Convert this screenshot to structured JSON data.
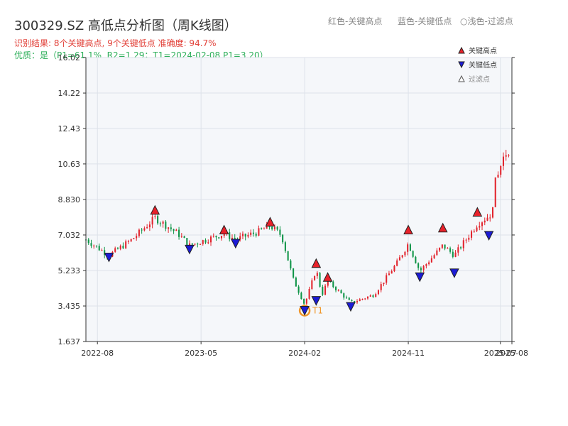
{
  "header": {
    "title": "300329.SZ 高低点分析图（周K线图）",
    "legend_red": "红色-关键高点",
    "legend_blue": "蓝色-关键低点",
    "legend_filtered": "○浅色-过滤点",
    "result_line": "识别结果: 8个关键高点, 9个关键低点   准确度: 94.7%",
    "quality_line": "优质：是（P1=61.1%, R2=1.29；T1=2024-02-08 P1=3.20）"
  },
  "colors": {
    "up": "#e2242d",
    "down": "#0f9447",
    "high_marker": "#e8212a",
    "low_marker": "#1b1bd6",
    "t1_ring": "#f0962a",
    "plot_bg": "#f5f7fa"
  },
  "chart_data": {
    "type": "candlestick",
    "title": "300329.SZ 高低点分析图（周K线图）",
    "ylim": [
      1.637,
      16.02
    ],
    "yticks": [
      "1.637",
      "3.435",
      "5.233",
      "7.032",
      "8.830",
      "10.63",
      "12.43",
      "14.22",
      "16.02"
    ],
    "xticks": [
      "2022-08",
      "2023-05",
      "2024-02",
      "2024-11",
      "2025-07",
      "2025-08"
    ],
    "x_range": [
      "2022-07",
      "2025-08"
    ],
    "legend": {
      "position": "top-right",
      "entries": [
        "关键高点",
        "关键低点",
        "过滤点"
      ]
    },
    "key_highs": [
      {
        "date": "2023-01",
        "value": 8.3
      },
      {
        "date": "2023-07",
        "value": 7.3
      },
      {
        "date": "2023-11",
        "value": 7.7
      },
      {
        "date": "2024-03",
        "value": 5.6
      },
      {
        "date": "2024-04",
        "value": 4.9
      },
      {
        "date": "2024-11",
        "value": 7.3
      },
      {
        "date": "2025-02",
        "value": 7.4
      },
      {
        "date": "2025-05",
        "value": 8.2
      }
    ],
    "key_lows": [
      {
        "date": "2022-09",
        "value": 5.9
      },
      {
        "date": "2023-04",
        "value": 6.3
      },
      {
        "date": "2023-08",
        "value": 6.6
      },
      {
        "date": "2024-02",
        "value": 3.2,
        "label": "T1"
      },
      {
        "date": "2024-03",
        "value": 3.7
      },
      {
        "date": "2024-06",
        "value": 3.4
      },
      {
        "date": "2024-12",
        "value": 4.9
      },
      {
        "date": "2025-03",
        "value": 5.1
      },
      {
        "date": "2025-06",
        "value": 7.0
      }
    ],
    "t1": {
      "date": "2024-02",
      "value": 3.2,
      "label": "T1"
    },
    "trend_points": [
      {
        "date": "2022-07",
        "value": 6.8
      },
      {
        "date": "2022-09",
        "value": 6.0
      },
      {
        "date": "2022-11",
        "value": 6.8
      },
      {
        "date": "2023-01",
        "value": 7.9
      },
      {
        "date": "2023-03",
        "value": 7.1
      },
      {
        "date": "2023-04",
        "value": 6.5
      },
      {
        "date": "2023-06",
        "value": 6.9
      },
      {
        "date": "2023-07",
        "value": 7.1
      },
      {
        "date": "2023-08",
        "value": 6.8
      },
      {
        "date": "2023-10",
        "value": 7.2
      },
      {
        "date": "2023-11",
        "value": 7.5
      },
      {
        "date": "2023-12",
        "value": 7.0
      },
      {
        "date": "2024-01",
        "value": 4.8
      },
      {
        "date": "2024-02",
        "value": 3.5
      },
      {
        "date": "2024-03",
        "value": 5.3
      },
      {
        "date": "2024-03",
        "value": 4.0
      },
      {
        "date": "2024-04",
        "value": 4.7
      },
      {
        "date": "2024-06",
        "value": 3.6
      },
      {
        "date": "2024-08",
        "value": 4.0
      },
      {
        "date": "2024-10",
        "value": 5.6
      },
      {
        "date": "2024-11",
        "value": 6.6
      },
      {
        "date": "2024-12",
        "value": 5.2
      },
      {
        "date": "2025-02",
        "value": 6.5
      },
      {
        "date": "2025-03",
        "value": 6.0
      },
      {
        "date": "2025-05",
        "value": 7.6
      },
      {
        "date": "2025-06",
        "value": 8.0
      },
      {
        "date": "2025-07",
        "value": 10.4
      },
      {
        "date": "2025-08",
        "value": 12.0
      }
    ]
  }
}
